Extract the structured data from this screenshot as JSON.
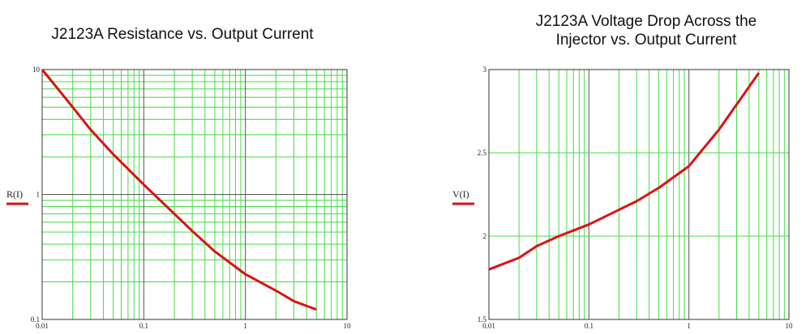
{
  "chart_data": [
    {
      "type": "line",
      "title": [
        "J2123A Resistance vs. Output Current"
      ],
      "x": [
        0.01,
        0.02,
        0.03,
        0.05,
        0.1,
        0.3,
        0.5,
        1,
        2,
        3,
        5
      ],
      "series": [
        {
          "name": "R(I)",
          "color": "#dd1111",
          "values": [
            10,
            5.0,
            3.3,
            2.1,
            1.2,
            0.51,
            0.35,
            0.23,
            0.17,
            0.14,
            0.12
          ]
        }
      ],
      "xscale": "log",
      "yscale": "log",
      "xlim": [
        0.01,
        10
      ],
      "xticks": [
        0.01,
        0.1,
        1,
        10
      ],
      "ylim": [
        0.1,
        10
      ],
      "yticks": [
        0.1,
        1,
        10
      ],
      "grid": true
    },
    {
      "type": "line",
      "title": [
        "J2123A Voltage Drop Across the",
        "Injector vs. Output Current"
      ],
      "x": [
        0.01,
        0.02,
        0.03,
        0.05,
        0.1,
        0.3,
        0.5,
        1,
        2,
        3,
        5
      ],
      "series": [
        {
          "name": "V(I)",
          "color": "#dd1111",
          "values": [
            1.8,
            1.87,
            1.94,
            2.0,
            2.07,
            2.21,
            2.29,
            2.42,
            2.64,
            2.79,
            2.98
          ]
        }
      ],
      "xscale": "log",
      "yscale": "linear",
      "xlim": [
        0.01,
        10
      ],
      "xticks": [
        0.01,
        0.1,
        1,
        10
      ],
      "ylim": [
        1.5,
        3
      ],
      "yticks": [
        1.5,
        2,
        2.5,
        3
      ],
      "grid": true
    }
  ]
}
